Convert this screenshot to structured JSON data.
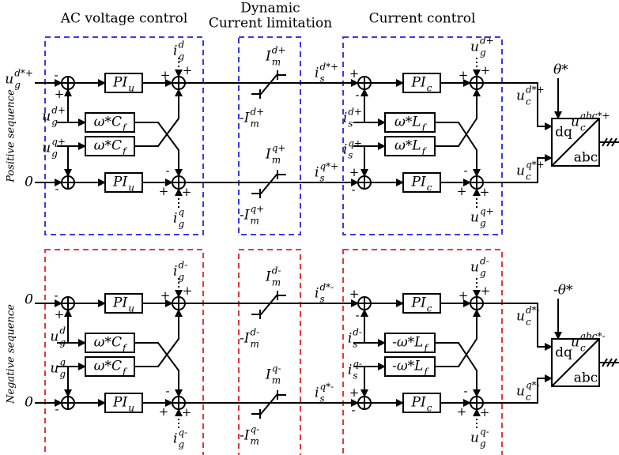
{
  "headers": {
    "voltage": "AC voltage control",
    "limitation": [
      "Dynamic",
      "Current limitation"
    ],
    "current": "Current control"
  },
  "sequences": [
    {
      "name": "Positive sequence",
      "labels": [
        {
          "base": "u",
          "sub": "g",
          "sup": "d*+"
        },
        {
          "base": "0"
        },
        {
          "base": "i",
          "sub": "g",
          "sup": "d"
        },
        {
          "base": "u",
          "sub": "g",
          "sup": "d+"
        },
        {
          "base": "u",
          "sub": "g",
          "sup": "q+"
        },
        {
          "base": "i",
          "sub": "g",
          "sup": "q"
        },
        {
          "base": "PI",
          "sub": "u"
        },
        {
          "base": "ω*C",
          "sub": "f"
        },
        {
          "base": "ω*C",
          "sub": "f"
        },
        {
          "base": "PI",
          "sub": "u"
        },
        {
          "base": "I",
          "sub": "m",
          "sup": "d+"
        },
        {
          "base": "-I",
          "sub": "m",
          "sup": "d+"
        },
        {
          "base": "I",
          "sub": "m",
          "sup": "q+"
        },
        {
          "base": "-I",
          "sub": "m",
          "sup": "q+"
        },
        {
          "base": "i",
          "sub": "s",
          "sup": "d*+"
        },
        {
          "base": "i",
          "sub": "s",
          "sup": "q*+"
        },
        {
          "base": "u",
          "sub": "g",
          "sup": "d+"
        },
        {
          "base": "i",
          "sub": "s",
          "sup": "d+"
        },
        {
          "base": "i",
          "sub": "s",
          "sup": "q+"
        },
        {
          "base": "u",
          "sub": "g",
          "sup": "q+"
        },
        {
          "base": "PI",
          "sub": "c"
        },
        {
          "base": "ω*L",
          "sub": "f"
        },
        {
          "base": "ω*L",
          "sub": "f"
        },
        {
          "base": "PI",
          "sub": "c"
        },
        {
          "base": "u",
          "sub": "c",
          "sup": "d*+"
        },
        {
          "base": "u",
          "sub": "c",
          "sup": "q*+"
        },
        {
          "base": "θ*"
        },
        {
          "base": "dq"
        },
        {
          "base": "abc"
        },
        {
          "base": "u",
          "sub": "c",
          "sup": "abc*+"
        }
      ],
      "junctions": [
        [
          "-",
          "+"
        ],
        [
          "+",
          "+"
        ],
        [
          "-"
        ],
        [
          "-",
          "+",
          "+"
        ],
        [
          "+",
          "-"
        ],
        [
          "+",
          "+"
        ],
        [
          "+",
          "-"
        ],
        [
          "-",
          "+",
          "+"
        ]
      ]
    },
    {
      "name": "Negative sequence",
      "labels": [
        {
          "base": "0"
        },
        {
          "base": "0"
        },
        {
          "base": "i",
          "sub": "g",
          "sup": "d-"
        },
        {
          "base": "u",
          "sub": "g",
          "sup": "d"
        },
        {
          "base": "u",
          "sub": "g",
          "sup": "q"
        },
        {
          "base": "i",
          "sub": "g",
          "sup": "q-"
        },
        {
          "base": "PI",
          "sub": "u"
        },
        {
          "base": "ω*C",
          "sub": "f"
        },
        {
          "base": "ω*C",
          "sub": "f"
        },
        {
          "base": "PI",
          "sub": "u"
        },
        {
          "base": "I",
          "sub": "m",
          "sup": "d-"
        },
        {
          "base": "-I",
          "sub": "m",
          "sup": "d-"
        },
        {
          "base": "I",
          "sub": "m",
          "sup": "q-"
        },
        {
          "base": "-I",
          "sub": "m",
          "sup": "q-"
        },
        {
          "base": "i",
          "sub": "s",
          "sup": "d*-"
        },
        {
          "base": "i",
          "sub": "s",
          "sup": "q*-"
        },
        {
          "base": "u",
          "sub": "g",
          "sup": "d-"
        },
        {
          "base": "i",
          "sub": "s",
          "sup": "d-"
        },
        {
          "base": "i",
          "sub": "s",
          "sup": "q-"
        },
        {
          "base": "u",
          "sub": "g",
          "sup": "q-"
        },
        {
          "base": "PI",
          "sub": "c"
        },
        {
          "base": "-ω*L",
          "sub": "f"
        },
        {
          "base": "-ω*L",
          "sub": "f"
        },
        {
          "base": "PI",
          "sub": "c"
        },
        {
          "base": "u",
          "sub": "c",
          "sup": "d*-"
        },
        {
          "base": "u",
          "sub": "c",
          "sup": "q*-"
        },
        {
          "base": "-θ*"
        },
        {
          "base": "dq"
        },
        {
          "base": "abc"
        },
        {
          "base": "u",
          "sub": "c",
          "sup": "abc*-"
        }
      ],
      "junctions": [
        [
          "-",
          "+"
        ],
        [
          "+",
          "+"
        ],
        [
          "-"
        ],
        [
          "-",
          "+",
          "+"
        ],
        [
          "+",
          "-"
        ],
        [
          "+",
          "+"
        ],
        [
          "+",
          "-"
        ],
        [
          "-",
          "+",
          "+"
        ]
      ]
    }
  ]
}
